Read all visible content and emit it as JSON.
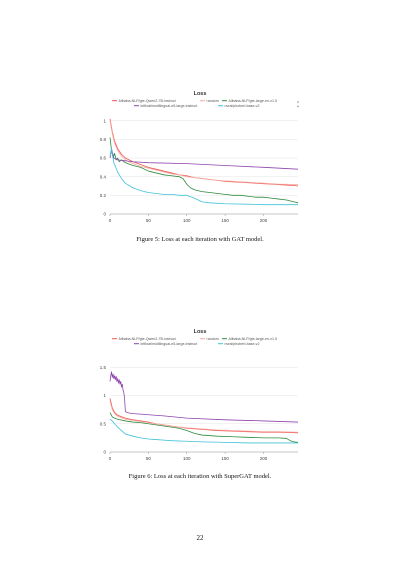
{
  "page_number": "22",
  "figures": [
    {
      "caption": "Figure 5: Loss at each iteration with GAT model.",
      "arrow_up": "▲",
      "arrow_down": "▼"
    },
    {
      "caption": "Figure 6: Loss at each iteration with SuperGAT model."
    }
  ],
  "chart_data": [
    {
      "type": "line",
      "title": "Loss",
      "xlabel": "",
      "ylabel": "",
      "xlim": [
        0,
        245
      ],
      "ylim": [
        0,
        1.05
      ],
      "xticks": [
        0,
        50,
        100,
        150,
        200
      ],
      "yticks": [
        0,
        0.2,
        0.4,
        0.6,
        0.8,
        1
      ],
      "ytick_labels": [
        "0",
        "0.2",
        "0.4",
        "0.6",
        "0.8",
        "1"
      ],
      "grid": true,
      "legend_position": "top",
      "series": [
        {
          "name": "Alibaba-NLP/gte-Qwen2-7B-instruct",
          "color": "#ef5350",
          "x": [
            0,
            3,
            6,
            10,
            15,
            20,
            30,
            40,
            50,
            60,
            70,
            80,
            90,
            100,
            110,
            120,
            130,
            140,
            150,
            160,
            170,
            180,
            190,
            200,
            210,
            220,
            230,
            240,
            245
          ],
          "y": [
            1.02,
            0.88,
            0.78,
            0.7,
            0.64,
            0.6,
            0.56,
            0.53,
            0.5,
            0.48,
            0.46,
            0.44,
            0.42,
            0.41,
            0.39,
            0.38,
            0.37,
            0.36,
            0.35,
            0.345,
            0.34,
            0.335,
            0.33,
            0.325,
            0.32,
            0.315,
            0.31,
            0.305,
            0.3
          ]
        },
        {
          "name": "random",
          "color": "#f4a9a0",
          "x": [
            0,
            3,
            6,
            10,
            15,
            20,
            30,
            40,
            50,
            60,
            70,
            80,
            90,
            100,
            110,
            120,
            130,
            140,
            150,
            160,
            170,
            180,
            190,
            200,
            210,
            220,
            230,
            240,
            245
          ],
          "y": [
            1.0,
            0.86,
            0.76,
            0.68,
            0.62,
            0.58,
            0.54,
            0.51,
            0.49,
            0.47,
            0.45,
            0.43,
            0.42,
            0.4,
            0.39,
            0.38,
            0.37,
            0.36,
            0.355,
            0.35,
            0.345,
            0.34,
            0.335,
            0.33,
            0.325,
            0.32,
            0.318,
            0.315,
            0.315
          ]
        },
        {
          "name": "Alibaba-NLP/gte-large-en-v1.5",
          "color": "#2e8b3e",
          "x": [
            0,
            2,
            4,
            6,
            8,
            10,
            12,
            15,
            20,
            30,
            40,
            50,
            60,
            70,
            80,
            90,
            95,
            100,
            105,
            110,
            120,
            130,
            140,
            150,
            160,
            170,
            180,
            190,
            200,
            210,
            220,
            230,
            240,
            245
          ],
          "y": [
            0.82,
            0.68,
            0.6,
            0.65,
            0.58,
            0.6,
            0.56,
            0.58,
            0.55,
            0.52,
            0.5,
            0.46,
            0.44,
            0.42,
            0.41,
            0.4,
            0.38,
            0.32,
            0.28,
            0.26,
            0.24,
            0.23,
            0.22,
            0.21,
            0.2,
            0.2,
            0.19,
            0.18,
            0.18,
            0.17,
            0.16,
            0.15,
            0.13,
            0.12
          ]
        },
        {
          "name": "intfloat/multilingual-e5-large-instruct",
          "color": "#8e44ad",
          "x": [
            0,
            2,
            5,
            10,
            20,
            30,
            50,
            100,
            150,
            200,
            245
          ],
          "y": [
            0.6,
            0.7,
            0.6,
            0.58,
            0.57,
            0.56,
            0.55,
            0.54,
            0.52,
            0.5,
            0.48
          ]
        },
        {
          "name": "nvrai/phobert-base-v2",
          "color": "#3fc1d9",
          "x": [
            0,
            2,
            5,
            10,
            15,
            20,
            30,
            40,
            50,
            60,
            70,
            80,
            90,
            100,
            110,
            120,
            130,
            150,
            180,
            200,
            220,
            245
          ],
          "y": [
            0.62,
            0.7,
            0.55,
            0.45,
            0.38,
            0.33,
            0.28,
            0.25,
            0.23,
            0.22,
            0.21,
            0.21,
            0.2,
            0.2,
            0.17,
            0.13,
            0.12,
            0.11,
            0.105,
            0.1,
            0.1,
            0.1
          ]
        }
      ]
    },
    {
      "type": "line",
      "title": "Loss",
      "xlabel": "",
      "ylabel": "",
      "xlim": [
        0,
        245
      ],
      "ylim": [
        0,
        1.7
      ],
      "xticks": [
        0,
        50,
        100,
        150,
        200
      ],
      "yticks": [
        0,
        0.5,
        1,
        1.5
      ],
      "ytick_labels": [
        "0",
        "0.5",
        "1",
        "1.5"
      ],
      "grid": true,
      "legend_position": "top",
      "series": [
        {
          "name": "Alibaba-NLP/gte-Qwen2-7B-instruct",
          "color": "#ef5350",
          "x": [
            0,
            3,
            6,
            10,
            20,
            30,
            40,
            50,
            60,
            70,
            80,
            90,
            100,
            120,
            140,
            160,
            180,
            200,
            220,
            245
          ],
          "y": [
            0.95,
            0.78,
            0.7,
            0.65,
            0.6,
            0.57,
            0.55,
            0.53,
            0.5,
            0.48,
            0.46,
            0.44,
            0.42,
            0.4,
            0.38,
            0.37,
            0.36,
            0.35,
            0.35,
            0.34
          ]
        },
        {
          "name": "random",
          "color": "#f4a9a0",
          "x": [
            0,
            3,
            6,
            10,
            20,
            30,
            40,
            50,
            60,
            70,
            80,
            90,
            100,
            120,
            140,
            160,
            180,
            200,
            220,
            245
          ],
          "y": [
            0.9,
            0.75,
            0.68,
            0.63,
            0.58,
            0.56,
            0.54,
            0.52,
            0.5,
            0.48,
            0.46,
            0.44,
            0.43,
            0.41,
            0.39,
            0.38,
            0.37,
            0.36,
            0.36,
            0.35
          ]
        },
        {
          "name": "Alibaba-NLP/gte-large-en-v1.5",
          "color": "#2e8b3e",
          "x": [
            0,
            3,
            6,
            10,
            20,
            30,
            40,
            50,
            60,
            70,
            80,
            90,
            100,
            110,
            120,
            140,
            160,
            180,
            200,
            220,
            230,
            235,
            240,
            245
          ],
          "y": [
            0.7,
            0.62,
            0.6,
            0.58,
            0.55,
            0.53,
            0.52,
            0.5,
            0.48,
            0.46,
            0.44,
            0.42,
            0.38,
            0.33,
            0.3,
            0.28,
            0.27,
            0.26,
            0.25,
            0.25,
            0.24,
            0.2,
            0.18,
            0.17
          ]
        },
        {
          "name": "intfloat/multilingual-e5-large-instruct",
          "color": "#8e44ad",
          "x": [
            0,
            1,
            2,
            3,
            4,
            5,
            6,
            7,
            8,
            9,
            10,
            11,
            12,
            13,
            14,
            15,
            16,
            17,
            18,
            19,
            20,
            22,
            25,
            30,
            40,
            50,
            70,
            100,
            150,
            200,
            245
          ],
          "y": [
            1.25,
            1.35,
            1.42,
            1.32,
            1.38,
            1.3,
            1.35,
            1.28,
            1.34,
            1.25,
            1.3,
            1.22,
            1.28,
            1.2,
            1.25,
            1.15,
            1.2,
            1.1,
            1.05,
            0.95,
            0.72,
            0.7,
            0.69,
            0.68,
            0.67,
            0.66,
            0.64,
            0.6,
            0.57,
            0.55,
            0.53
          ]
        },
        {
          "name": "nvrai/phobert-base-v2",
          "color": "#3fc1d9",
          "x": [
            0,
            3,
            6,
            10,
            15,
            20,
            30,
            40,
            50,
            60,
            70,
            80,
            100,
            120,
            150,
            180,
            200,
            220,
            245
          ],
          "y": [
            0.58,
            0.55,
            0.5,
            0.44,
            0.38,
            0.32,
            0.28,
            0.25,
            0.23,
            0.22,
            0.21,
            0.2,
            0.19,
            0.18,
            0.17,
            0.16,
            0.16,
            0.16,
            0.16
          ]
        }
      ]
    }
  ]
}
